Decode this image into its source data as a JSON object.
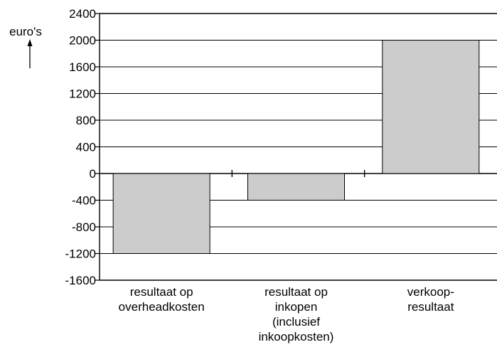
{
  "chart_data": {
    "type": "bar",
    "ylabel": "euro's",
    "ylim": [
      -1600,
      2400
    ],
    "yticks": [
      2400,
      2000,
      1600,
      1200,
      800,
      400,
      0,
      -400,
      -800,
      -1200,
      -1600
    ],
    "categories": [
      [
        "resultaat op",
        "overheadkosten"
      ],
      [
        "resultaat op",
        "inkopen",
        "(inclusief",
        "inkoopkosten)"
      ],
      [
        "verkoop-",
        "resultaat"
      ]
    ],
    "values": [
      -1200,
      -400,
      2000
    ],
    "bar_color": "#cccccc",
    "grid": true
  }
}
